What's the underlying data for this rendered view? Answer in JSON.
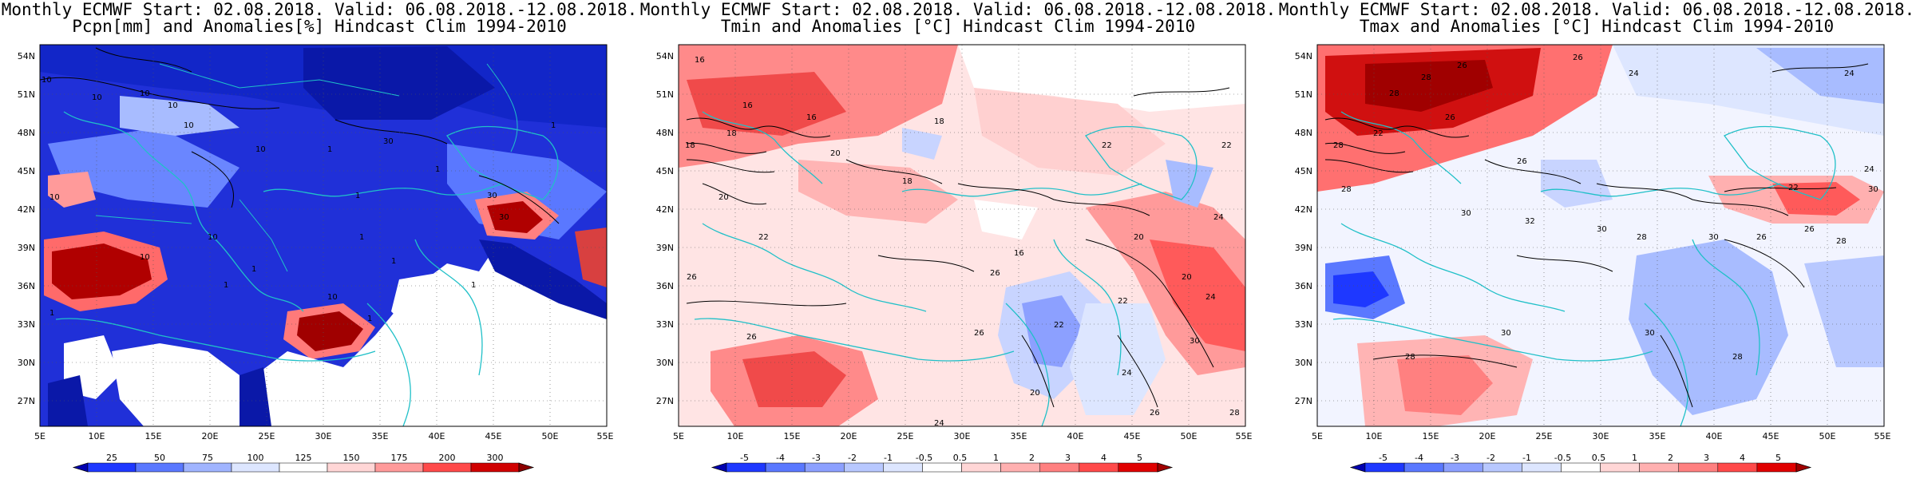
{
  "panels": [
    {
      "title1": "Monthly ECMWF Start: 02.08.2018. Valid: 06.08.2018.-12.08.2018.",
      "title2": "Pcpn[mm] and Anomalies[%] Hindcast Clim 1994-2010",
      "lat_labels": [
        "54N",
        "51N",
        "48N",
        "45N",
        "42N",
        "39N",
        "36N",
        "33N",
        "30N",
        "27N"
      ],
      "lon_labels": [
        "5E",
        "10E",
        "15E",
        "20E",
        "25E",
        "30E",
        "35E",
        "40E",
        "45E",
        "50E",
        "55E"
      ],
      "colorbar": {
        "labels": [
          "25",
          "50",
          "75",
          "100",
          "125",
          "150",
          "175",
          "200",
          "300"
        ],
        "colors": [
          "#0000b0",
          "#1e38ff",
          "#5a78ff",
          "#a0b4ff",
          "#dde6ff",
          "#ffffff",
          "#ffd6d6",
          "#ff9a9a",
          "#ff4a4a",
          "#d00000",
          "#8b0000"
        ]
      },
      "contour_labels": [
        "10",
        "10",
        "10",
        "10",
        "1",
        "30",
        "10",
        "1",
        "1",
        "30",
        "10",
        "10",
        "10",
        "1",
        "1",
        "10",
        "1",
        "1",
        "1",
        "1",
        "1",
        "30",
        "1",
        "10"
      ]
    },
    {
      "title1": "Monthly ECMWF Start: 02.08.2018. Valid: 06.08.2018.-12.08.2018.",
      "title2": "Tmin and Anomalies [°C] Hindcast Clim 1994-2010",
      "lat_labels": [
        "54N",
        "51N",
        "48N",
        "45N",
        "42N",
        "39N",
        "36N",
        "33N",
        "30N",
        "27N"
      ],
      "lon_labels": [
        "5E",
        "10E",
        "15E",
        "20E",
        "25E",
        "30E",
        "35E",
        "40E",
        "45E",
        "50E",
        "55E"
      ],
      "colorbar": {
        "labels": [
          "-5",
          "-4",
          "-3",
          "-2",
          "-1",
          "-0.5",
          "0.5",
          "1",
          "2",
          "3",
          "4",
          "5"
        ],
        "colors": [
          "#0000b0",
          "#1e38ff",
          "#5a78ff",
          "#8ca0ff",
          "#b8c8ff",
          "#dde6ff",
          "#ffffff",
          "#ffd6d6",
          "#ffb0b0",
          "#ff8080",
          "#ff4a4a",
          "#e00000",
          "#a00000"
        ]
      },
      "contour_labels": [
        "16",
        "16",
        "18",
        "18",
        "16",
        "20",
        "18",
        "18",
        "20",
        "22",
        "22",
        "22",
        "24",
        "26",
        "16",
        "20",
        "26",
        "26",
        "20",
        "22",
        "24",
        "24",
        "26",
        "30",
        "28",
        "26",
        "24",
        "22",
        "20"
      ]
    },
    {
      "title1": "Monthly ECMWF Start: 02.08.2018. Valid: 06.08.2018.-12.08.2018.",
      "title2": "Tmax and Anomalies [°C] Hindcast Clim 1994-2010",
      "lat_labels": [
        "54N",
        "51N",
        "48N",
        "45N",
        "42N",
        "39N",
        "36N",
        "33N",
        "30N",
        "27N"
      ],
      "lon_labels": [
        "5E",
        "10E",
        "15E",
        "20E",
        "25E",
        "30E",
        "35E",
        "40E",
        "45E",
        "50E",
        "55E"
      ],
      "colorbar": {
        "labels": [
          "-5",
          "-4",
          "-3",
          "-2",
          "-1",
          "-0.5",
          "0.5",
          "1",
          "2",
          "3",
          "4",
          "5"
        ],
        "colors": [
          "#0000b0",
          "#1e38ff",
          "#5a78ff",
          "#8ca0ff",
          "#b8c8ff",
          "#dde6ff",
          "#ffffff",
          "#ffd6d6",
          "#ffb0b0",
          "#ff8080",
          "#ff4a4a",
          "#e00000",
          "#a00000"
        ]
      },
      "contour_labels": [
        "26",
        "28",
        "28",
        "26",
        "24",
        "24",
        "26",
        "22",
        "28",
        "26",
        "28",
        "30",
        "32",
        "30",
        "28",
        "30",
        "28",
        "30",
        "26",
        "28",
        "30",
        "28",
        "24",
        "26",
        "30",
        "22"
      ]
    }
  ]
}
